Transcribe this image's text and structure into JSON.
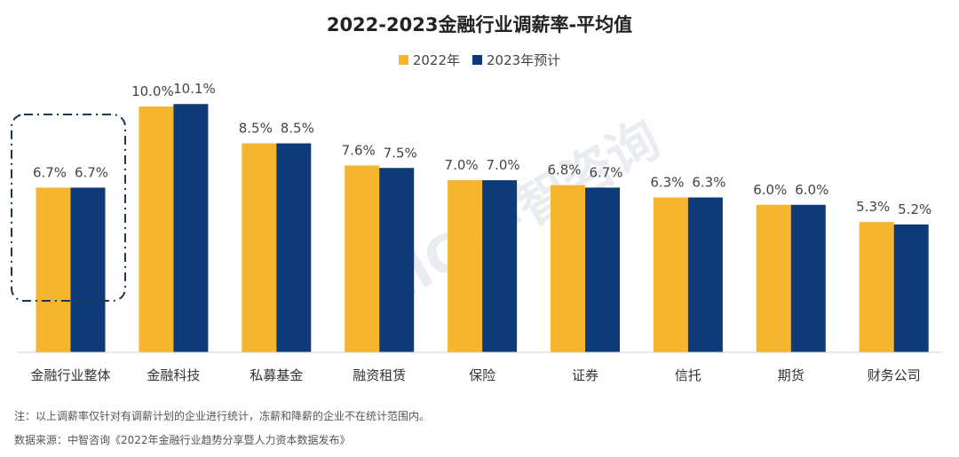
{
  "chart_data": {
    "type": "bar",
    "title": "2022-2023金融行业调薪率-平均值",
    "categories": [
      "金融行业整体",
      "金融科技",
      "私募基金",
      "融资租赁",
      "保险",
      "证券",
      "信托",
      "期货",
      "财务公司"
    ],
    "series": [
      {
        "name": "2022年",
        "color": "#F5B52E",
        "values": [
          6.7,
          10.0,
          8.5,
          7.6,
          7.0,
          6.8,
          6.3,
          6.0,
          5.3
        ],
        "labels": [
          "6.7%",
          "10.0%",
          "8.5%",
          "7.6%",
          "7.0%",
          "6.8%",
          "6.3%",
          "6.0%",
          "5.3%"
        ]
      },
      {
        "name": "2023年预计",
        "color": "#0D3B7A",
        "values": [
          6.7,
          10.1,
          8.5,
          7.5,
          7.0,
          6.7,
          6.3,
          6.0,
          5.2
        ],
        "labels": [
          "6.7%",
          "10.1%",
          "8.5%",
          "7.5%",
          "7.0%",
          "6.7%",
          "6.3%",
          "6.0%",
          "5.2%"
        ]
      }
    ],
    "unit": "%",
    "ylim": [
      0,
      12
    ],
    "grid": false,
    "legend": "top-center",
    "highlighted_category": "金融行业整体"
  },
  "notes": {
    "footnote": "注：以上调薪率仅针对有调薪计划的企业进行统计，冻薪和降薪的企业不在统计范围内。",
    "source": "数据来源：中智咨询《2022年金融行业趋势分享暨人力资本数据发布》"
  },
  "watermark": "CIIC 中智咨询"
}
